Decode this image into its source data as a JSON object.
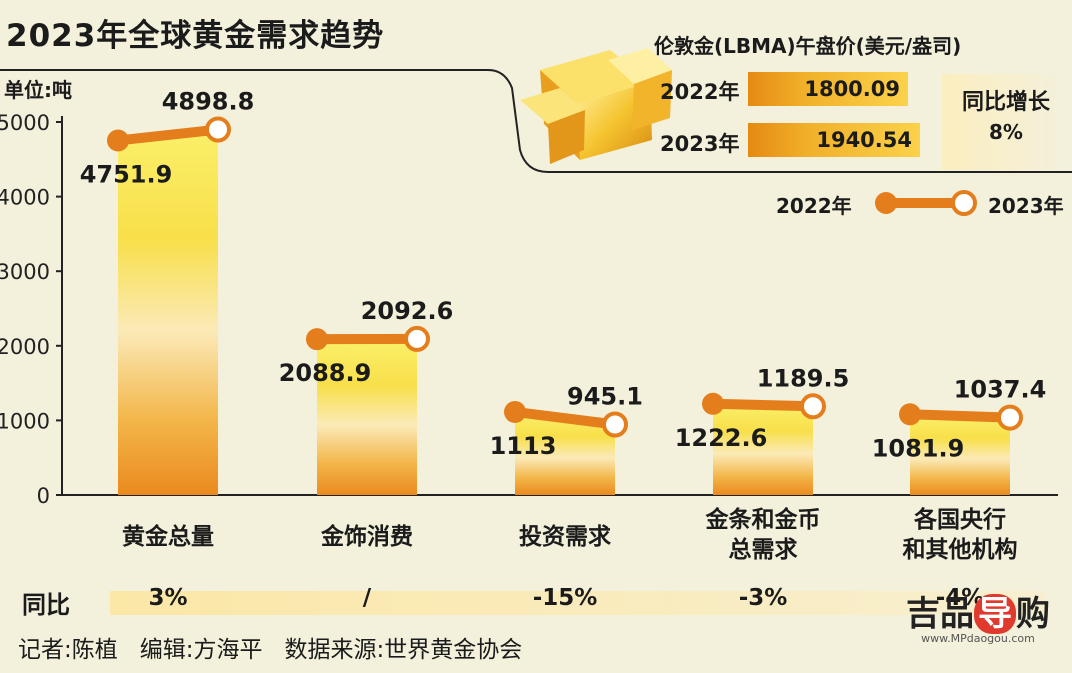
{
  "title": "2023年全球黄金需求趋势",
  "unit_label": "单位:吨",
  "lbma": {
    "title": "伦敦金(LBMA)午盘价(美元/盎司)",
    "rows": [
      {
        "year": "2022年",
        "value": "1800.09"
      },
      {
        "year": "2023年",
        "value": "1940.54"
      }
    ],
    "yoy_title": "同比增长",
    "yoy_value": "8%"
  },
  "legend": {
    "left": "2022年",
    "right": "2023年"
  },
  "yoy_row_label": "同比",
  "credits": [
    "记者:陈植",
    "编辑:方海平",
    "数据来源:世界黄金协会"
  ],
  "watermark": {
    "main_a": "吉品",
    "main_b": "导",
    "main_c": "购",
    "url": "www.MPdaogou.com"
  },
  "colors": {
    "line": "#e47d1c",
    "bar_top": "#faee5a",
    "bar_bottom": "#ea8a1f",
    "background": "#f3f0dc"
  },
  "chart_data": {
    "type": "bar",
    "title": "2023年全球黄金需求趋势",
    "ylabel": "单位:吨",
    "ylim": [
      0,
      5000
    ],
    "yticks": [
      0,
      1000,
      2000,
      3000,
      4000,
      5000
    ],
    "categories": [
      "黄金总量",
      "金饰消费",
      "投资需求",
      "金条和金币\n总需求",
      "各国央行\n和其他机构"
    ],
    "series": [
      {
        "name": "2022年",
        "values": [
          4751.9,
          2088.9,
          1113,
          1222.6,
          1081.9
        ]
      },
      {
        "name": "2023年",
        "values": [
          4898.8,
          2092.6,
          945.1,
          1189.5,
          1037.4
        ]
      }
    ],
    "data_labels_2022": [
      "4751.9",
      "2088.9",
      "1113",
      "1222.6",
      "1081.9"
    ],
    "data_labels_2023": [
      "4898.8",
      "2092.6",
      "945.1",
      "1189.5",
      "1037.4"
    ],
    "yoy": [
      "3%",
      "/",
      "-15%",
      "-3%",
      "-4%"
    ],
    "legend": "top-right",
    "grid": false
  }
}
